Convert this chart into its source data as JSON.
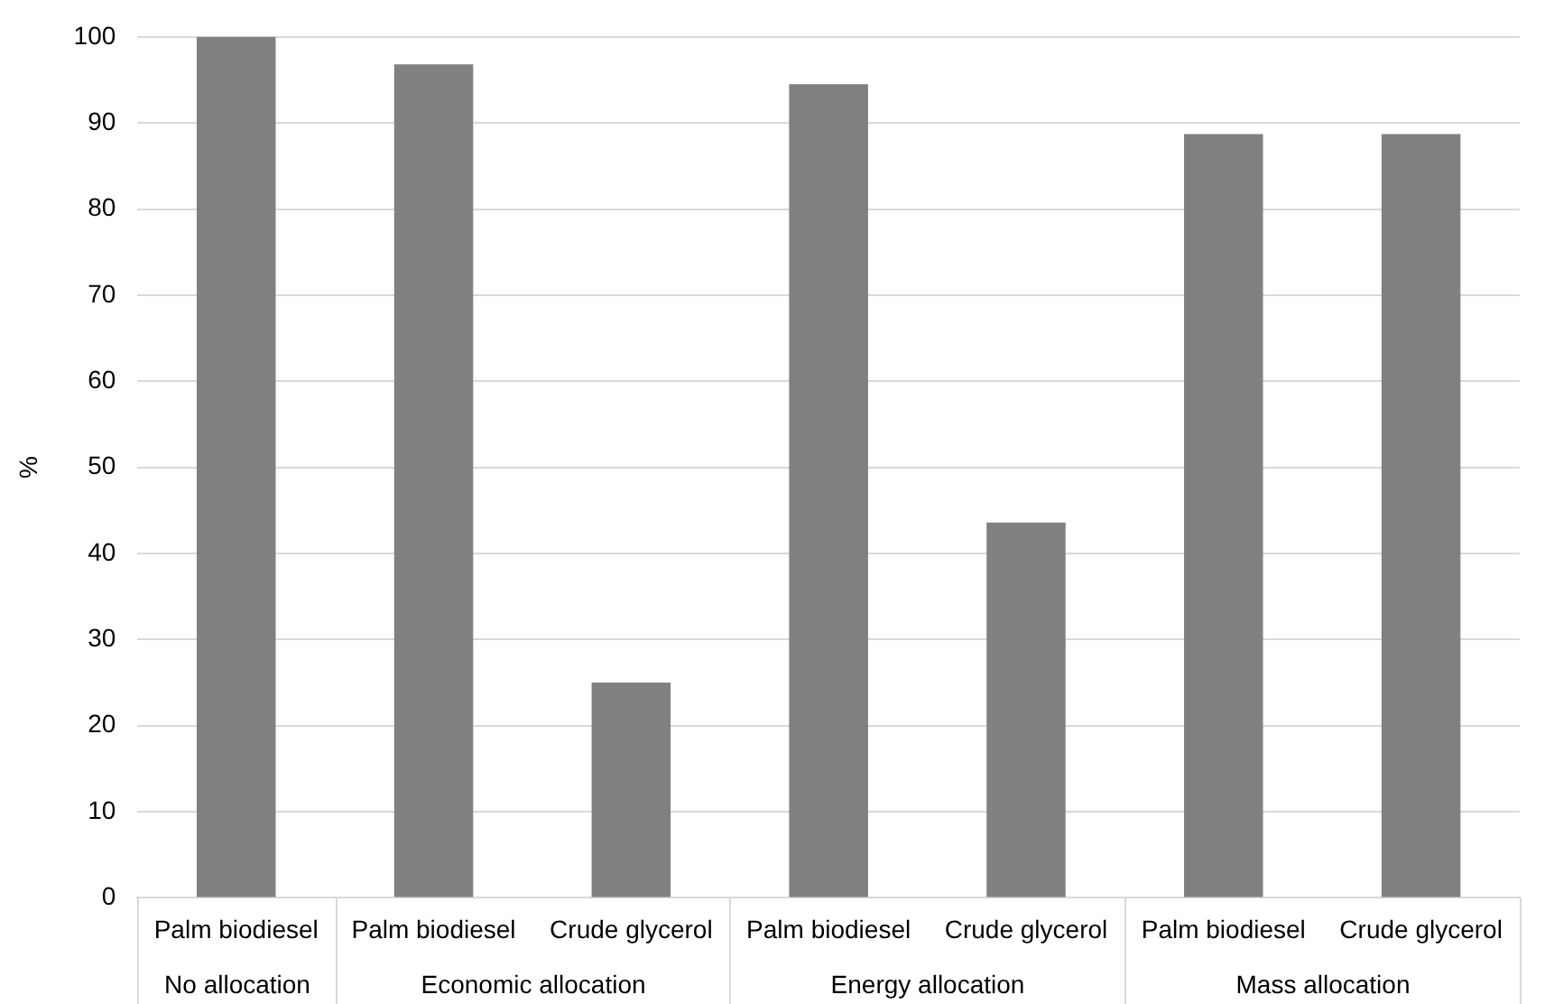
{
  "chart_data": {
    "type": "bar",
    "ylabel": "%",
    "categories": [
      "Palm biodiesel",
      "Palm biodiesel",
      "Crude glycerol",
      "Palm biodiesel",
      "Crude glycerol",
      "Palm biodiesel",
      "Crude glycerol"
    ],
    "values": [
      100,
      96.8,
      25,
      94.5,
      43.6,
      88.7,
      88.7
    ],
    "color": "#808080",
    "ylim": [
      0,
      100
    ],
    "yticks": [
      0,
      10,
      20,
      30,
      40,
      50,
      60,
      70,
      80,
      90,
      100
    ],
    "grid": "y",
    "annotations": [
      "No allocation",
      "Economic allocation",
      "Energy allocation",
      "Mass allocation"
    ]
  }
}
